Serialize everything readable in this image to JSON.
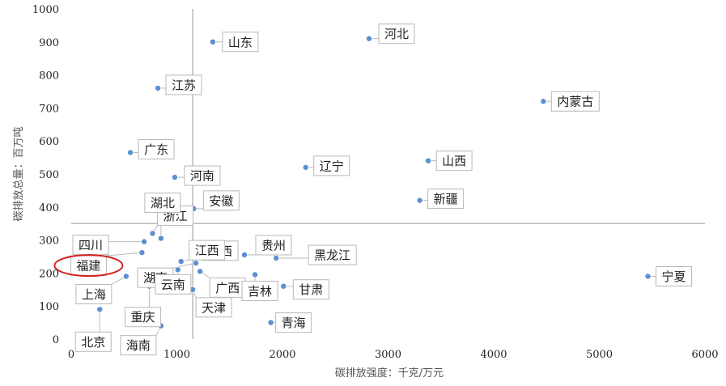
{
  "chart_data": {
    "type": "scatter",
    "xlabel": "碳排放强度：千克/万元",
    "ylabel": "碳排放总量：百万吨",
    "xlim": [
      0,
      6000
    ],
    "ylim": [
      0,
      1000
    ],
    "x_ticks": [
      "0",
      "1000",
      "2000",
      "3000",
      "4000",
      "5000",
      "6000"
    ],
    "y_ticks": [
      "0",
      "100",
      "200",
      "300",
      "400",
      "500",
      "600",
      "700",
      "800",
      "900",
      "1000"
    ],
    "reference_lines": {
      "x": 1150,
      "y": 350
    },
    "point_color": "#5b8fd1",
    "highlight": {
      "label": "福建",
      "color": "#d62020"
    },
    "points": [
      {
        "label": "山东",
        "x": 1340,
        "y": 900
      },
      {
        "label": "河北",
        "x": 2820,
        "y": 910
      },
      {
        "label": "江苏",
        "x": 820,
        "y": 760
      },
      {
        "label": "内蒙古",
        "x": 4470,
        "y": 720
      },
      {
        "label": "广东",
        "x": 560,
        "y": 565
      },
      {
        "label": "山西",
        "x": 3380,
        "y": 540
      },
      {
        "label": "河南",
        "x": 980,
        "y": 490
      },
      {
        "label": "辽宁",
        "x": 2220,
        "y": 520
      },
      {
        "label": "新疆",
        "x": 3300,
        "y": 420
      },
      {
        "label": "安徽",
        "x": 1160,
        "y": 395
      },
      {
        "label": "浙江",
        "x": 770,
        "y": 320
      },
      {
        "label": "湖北",
        "x": 850,
        "y": 305
      },
      {
        "label": "四川",
        "x": 690,
        "y": 295
      },
      {
        "label": "陕西",
        "x": 1150,
        "y": 275
      },
      {
        "label": "福建",
        "x": 670,
        "y": 262
      },
      {
        "label": "贵州",
        "x": 1640,
        "y": 255
      },
      {
        "label": "黑龙江",
        "x": 1940,
        "y": 245
      },
      {
        "label": "江西",
        "x": 1040,
        "y": 235
      },
      {
        "label": "湖南",
        "x": 1180,
        "y": 230
      },
      {
        "label": "云南",
        "x": 1010,
        "y": 210
      },
      {
        "label": "广西",
        "x": 1220,
        "y": 205
      },
      {
        "label": "上海",
        "x": 520,
        "y": 190
      },
      {
        "label": "宁夏",
        "x": 5460,
        "y": 190
      },
      {
        "label": "吉林",
        "x": 1740,
        "y": 195
      },
      {
        "label": "甘肃",
        "x": 2010,
        "y": 160
      },
      {
        "label": "重庆",
        "x": 740,
        "y": 160
      },
      {
        "label": "天津",
        "x": 1150,
        "y": 150
      },
      {
        "label": "北京",
        "x": 270,
        "y": 90
      },
      {
        "label": "青海",
        "x": 1890,
        "y": 50
      },
      {
        "label": "海南",
        "x": 850,
        "y": 40
      }
    ]
  }
}
